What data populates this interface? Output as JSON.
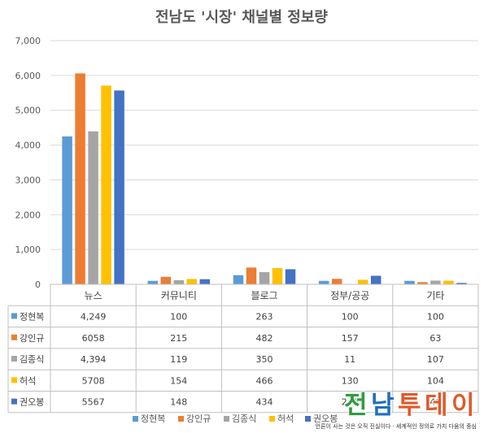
{
  "chart_data": {
    "type": "bar",
    "title": "전남도 '시장' 채널별 정보량",
    "categories": [
      "뉴스",
      "커뮤니티",
      "블로그",
      "정부/공공",
      "기타"
    ],
    "ylim": [
      0,
      7000
    ],
    "yticks": [
      "0",
      "1,000",
      "2,000",
      "3,000",
      "4,000",
      "5,000",
      "6,000",
      "7,000"
    ],
    "grid": true,
    "legend": "bottom",
    "series": [
      {
        "name": "정현복",
        "color": "#5b9bd5",
        "values": [
          4249,
          100,
          263,
          100,
          100
        ],
        "labels": [
          "4,249",
          "100",
          "263",
          "100",
          "100"
        ]
      },
      {
        "name": "강인규",
        "color": "#ed7d31",
        "values": [
          6058,
          215,
          482,
          157,
          63
        ],
        "labels": [
          "6058",
          "215",
          "482",
          "157",
          "63"
        ]
      },
      {
        "name": "김종식",
        "color": "#a5a5a5",
        "values": [
          4394,
          119,
          350,
          11,
          107
        ],
        "labels": [
          "4,394",
          "119",
          "350",
          "11",
          "107"
        ]
      },
      {
        "name": "허석",
        "color": "#ffc000",
        "values": [
          5708,
          154,
          466,
          130,
          104
        ],
        "labels": [
          "5708",
          "154",
          "466",
          "130",
          "104"
        ]
      },
      {
        "name": "권오봉",
        "color": "#4472c4",
        "values": [
          5567,
          148,
          434,
          246,
          40
        ],
        "labels": [
          "5567",
          "148",
          "434",
          "246",
          "40"
        ]
      }
    ]
  },
  "watermark": {
    "logo_text": "전남투데이",
    "logo_colors": [
      "#2e9c3f",
      "#1f6fbf",
      "#e05a2b"
    ],
    "tagline": "언론이 사는 것은 오직 진실이다 · 세계적인 정의로 가치 다움의 중심"
  }
}
